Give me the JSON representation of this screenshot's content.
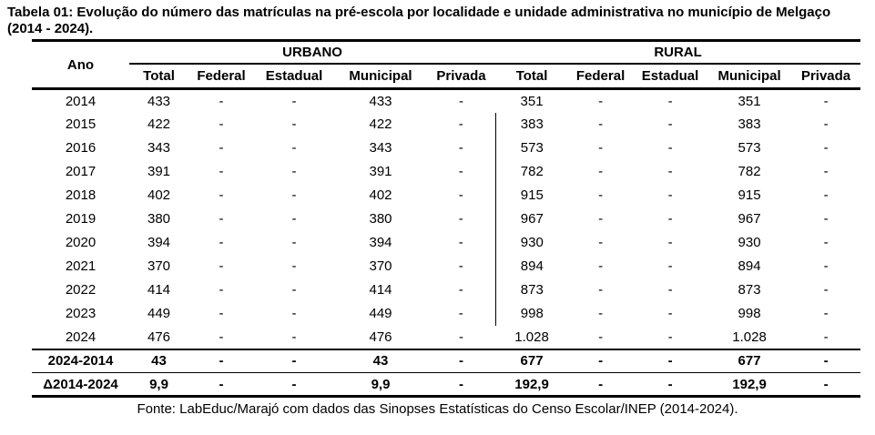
{
  "title": "Tabela 01: Evolução do número das matrículas na pré-escola por localidade e unidade administrativa no município de Melgaço (2014 - 2024).",
  "table": {
    "ano_header": "Ano",
    "groups": {
      "urbano": "URBANO",
      "rural": "RURAL"
    },
    "sub_headers": [
      "Total",
      "Federal",
      "Estadual",
      "Municipal",
      "Privada"
    ],
    "rows": [
      {
        "ano": "2014",
        "cells": [
          "433",
          "-",
          "-",
          "433",
          "-",
          "351",
          "-",
          "-",
          "351",
          "-"
        ]
      },
      {
        "ano": "2015",
        "cells": [
          "422",
          "-",
          "-",
          "422",
          "-",
          "383",
          "-",
          "-",
          "383",
          "-"
        ]
      },
      {
        "ano": "2016",
        "cells": [
          "343",
          "-",
          "-",
          "343",
          "-",
          "573",
          "-",
          "-",
          "573",
          "-"
        ]
      },
      {
        "ano": "2017",
        "cells": [
          "391",
          "-",
          "-",
          "391",
          "-",
          "782",
          "-",
          "-",
          "782",
          "-"
        ]
      },
      {
        "ano": "2018",
        "cells": [
          "402",
          "-",
          "-",
          "402",
          "-",
          "915",
          "-",
          "-",
          "915",
          "-"
        ]
      },
      {
        "ano": "2019",
        "cells": [
          "380",
          "-",
          "-",
          "380",
          "-",
          "967",
          "-",
          "-",
          "967",
          "-"
        ]
      },
      {
        "ano": "2020",
        "cells": [
          "394",
          "-",
          "-",
          "394",
          "-",
          "930",
          "-",
          "-",
          "930",
          "-"
        ]
      },
      {
        "ano": "2021",
        "cells": [
          "370",
          "-",
          "-",
          "370",
          "-",
          "894",
          "-",
          "-",
          "894",
          "-"
        ]
      },
      {
        "ano": "2022",
        "cells": [
          "414",
          "-",
          "-",
          "414",
          "-",
          "873",
          "-",
          "-",
          "873",
          "-"
        ]
      },
      {
        "ano": "2023",
        "cells": [
          "449",
          "-",
          "-",
          "449",
          "-",
          "998",
          "-",
          "-",
          "998",
          "-"
        ]
      },
      {
        "ano": "2024",
        "cells": [
          "476",
          "-",
          "-",
          "476",
          "-",
          "1.028",
          "-",
          "-",
          "1.028",
          "-"
        ]
      }
    ],
    "summary_rows": [
      {
        "ano": "2024-2014",
        "cells": [
          "43",
          "-",
          "-",
          "43",
          "-",
          "677",
          "-",
          "-",
          "677",
          "-"
        ]
      },
      {
        "ano": "Δ2014-2024",
        "cells": [
          "9,9",
          "-",
          "-",
          "9,9",
          "-",
          "192,9",
          "-",
          "-",
          "192,9",
          "-"
        ]
      }
    ],
    "vline_rows": [
      1,
      2,
      3,
      4,
      5,
      6,
      7,
      8,
      9
    ],
    "vline_col": 5
  },
  "footer": "Fonte: LabEduc/Marajó com dados das Sinopses Estatísticas do Censo Escolar/INEP (2014-2024)."
}
